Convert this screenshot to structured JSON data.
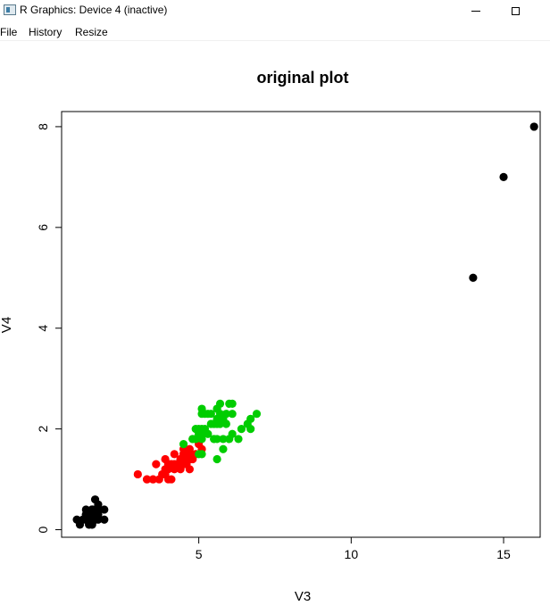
{
  "window": {
    "title": "R Graphics: Device 4 (inactive)",
    "icon": "r-graphics-icon"
  },
  "menu": {
    "items": [
      {
        "label": "File"
      },
      {
        "label": "History"
      },
      {
        "label": "Resize"
      }
    ]
  },
  "chart_data": {
    "type": "scatter",
    "title": "original plot",
    "xlabel": "V3",
    "ylabel": "V4",
    "xlim": [
      0.5,
      16.2
    ],
    "ylim": [
      -0.15,
      8.3
    ],
    "xticks": [
      5,
      10,
      15
    ],
    "yticks": [
      0,
      2,
      4,
      6,
      8
    ],
    "grid": false,
    "series": [
      {
        "color": "#000000",
        "points": [
          [
            1.4,
            0.2
          ],
          [
            1.4,
            0.2
          ],
          [
            1.3,
            0.2
          ],
          [
            1.5,
            0.2
          ],
          [
            1.4,
            0.2
          ],
          [
            1.7,
            0.4
          ],
          [
            1.4,
            0.3
          ],
          [
            1.5,
            0.2
          ],
          [
            1.4,
            0.2
          ],
          [
            1.5,
            0.1
          ],
          [
            1.5,
            0.2
          ],
          [
            1.6,
            0.2
          ],
          [
            1.4,
            0.1
          ],
          [
            1.1,
            0.1
          ],
          [
            1.2,
            0.2
          ],
          [
            1.5,
            0.4
          ],
          [
            1.3,
            0.4
          ],
          [
            1.4,
            0.3
          ],
          [
            1.7,
            0.3
          ],
          [
            1.5,
            0.3
          ],
          [
            1.7,
            0.2
          ],
          [
            1.5,
            0.4
          ],
          [
            1.0,
            0.2
          ],
          [
            1.7,
            0.5
          ],
          [
            1.9,
            0.2
          ],
          [
            1.6,
            0.2
          ],
          [
            1.6,
            0.4
          ],
          [
            1.5,
            0.2
          ],
          [
            1.4,
            0.2
          ],
          [
            1.6,
            0.2
          ],
          [
            1.6,
            0.2
          ],
          [
            1.5,
            0.4
          ],
          [
            1.5,
            0.1
          ],
          [
            1.4,
            0.2
          ],
          [
            1.5,
            0.2
          ],
          [
            1.2,
            0.2
          ],
          [
            1.3,
            0.2
          ],
          [
            1.4,
            0.1
          ],
          [
            1.3,
            0.2
          ],
          [
            1.5,
            0.2
          ],
          [
            1.3,
            0.3
          ],
          [
            1.3,
            0.3
          ],
          [
            1.3,
            0.2
          ],
          [
            1.6,
            0.6
          ],
          [
            1.9,
            0.4
          ],
          [
            1.4,
            0.3
          ],
          [
            1.6,
            0.2
          ],
          [
            1.4,
            0.2
          ],
          [
            1.5,
            0.2
          ],
          [
            1.4,
            0.2
          ],
          [
            14,
            5
          ],
          [
            15,
            7
          ],
          [
            16,
            8
          ]
        ]
      },
      {
        "color": "#ff0000",
        "points": [
          [
            4.7,
            1.4
          ],
          [
            4.5,
            1.5
          ],
          [
            4.9,
            1.5
          ],
          [
            4.0,
            1.3
          ],
          [
            4.6,
            1.5
          ],
          [
            4.5,
            1.3
          ],
          [
            4.7,
            1.6
          ],
          [
            3.3,
            1.0
          ],
          [
            4.6,
            1.3
          ],
          [
            3.9,
            1.4
          ],
          [
            3.5,
            1.0
          ],
          [
            4.2,
            1.5
          ],
          [
            4.0,
            1.0
          ],
          [
            4.7,
            1.4
          ],
          [
            3.6,
            1.3
          ],
          [
            4.4,
            1.4
          ],
          [
            4.5,
            1.5
          ],
          [
            4.1,
            1.0
          ],
          [
            4.5,
            1.5
          ],
          [
            3.9,
            1.1
          ],
          [
            4.8,
            1.8
          ],
          [
            4.0,
            1.3
          ],
          [
            4.9,
            1.5
          ],
          [
            4.7,
            1.2
          ],
          [
            4.3,
            1.3
          ],
          [
            4.4,
            1.4
          ],
          [
            4.8,
            1.4
          ],
          [
            5.0,
            1.7
          ],
          [
            4.5,
            1.5
          ],
          [
            3.5,
            1.0
          ],
          [
            3.8,
            1.1
          ],
          [
            3.7,
            1.0
          ],
          [
            3.9,
            1.2
          ],
          [
            5.1,
            1.6
          ],
          [
            4.5,
            1.5
          ],
          [
            4.5,
            1.6
          ],
          [
            4.7,
            1.5
          ],
          [
            4.4,
            1.3
          ],
          [
            4.1,
            1.3
          ],
          [
            4.0,
            1.3
          ],
          [
            4.4,
            1.2
          ],
          [
            4.6,
            1.4
          ],
          [
            4.0,
            1.2
          ],
          [
            3.3,
            1.0
          ],
          [
            4.2,
            1.3
          ],
          [
            4.2,
            1.2
          ],
          [
            4.2,
            1.3
          ],
          [
            4.3,
            1.3
          ],
          [
            3.0,
            1.1
          ],
          [
            4.1,
            1.3
          ]
        ]
      },
      {
        "color": "#00cd00",
        "points": [
          [
            6.0,
            2.5
          ],
          [
            5.1,
            1.9
          ],
          [
            5.9,
            2.1
          ],
          [
            5.6,
            1.8
          ],
          [
            5.8,
            2.2
          ],
          [
            6.6,
            2.1
          ],
          [
            4.5,
            1.7
          ],
          [
            6.3,
            1.8
          ],
          [
            5.8,
            1.8
          ],
          [
            6.1,
            2.5
          ],
          [
            5.1,
            2.0
          ],
          [
            5.3,
            1.9
          ],
          [
            5.5,
            2.1
          ],
          [
            5.0,
            2.0
          ],
          [
            5.1,
            2.4
          ],
          [
            5.3,
            2.3
          ],
          [
            5.5,
            1.8
          ],
          [
            6.7,
            2.2
          ],
          [
            6.9,
            2.3
          ],
          [
            5.0,
            1.5
          ],
          [
            5.7,
            2.3
          ],
          [
            4.9,
            2.0
          ],
          [
            6.7,
            2.0
          ],
          [
            4.9,
            1.8
          ],
          [
            5.7,
            2.1
          ],
          [
            6.0,
            1.8
          ],
          [
            4.8,
            1.8
          ],
          [
            4.9,
            1.8
          ],
          [
            5.6,
            2.1
          ],
          [
            5.8,
            1.6
          ],
          [
            6.1,
            1.9
          ],
          [
            6.4,
            2.0
          ],
          [
            5.6,
            2.2
          ],
          [
            5.1,
            1.5
          ],
          [
            5.6,
            1.4
          ],
          [
            6.1,
            2.3
          ],
          [
            5.6,
            2.4
          ],
          [
            5.5,
            1.8
          ],
          [
            4.8,
            1.8
          ],
          [
            5.4,
            2.1
          ],
          [
            5.6,
            2.4
          ],
          [
            5.1,
            2.3
          ],
          [
            5.1,
            1.9
          ],
          [
            5.9,
            2.3
          ],
          [
            5.7,
            2.5
          ],
          [
            5.2,
            2.3
          ],
          [
            5.0,
            1.9
          ],
          [
            5.2,
            2.0
          ],
          [
            5.4,
            2.3
          ],
          [
            5.1,
            1.8
          ]
        ]
      }
    ]
  }
}
